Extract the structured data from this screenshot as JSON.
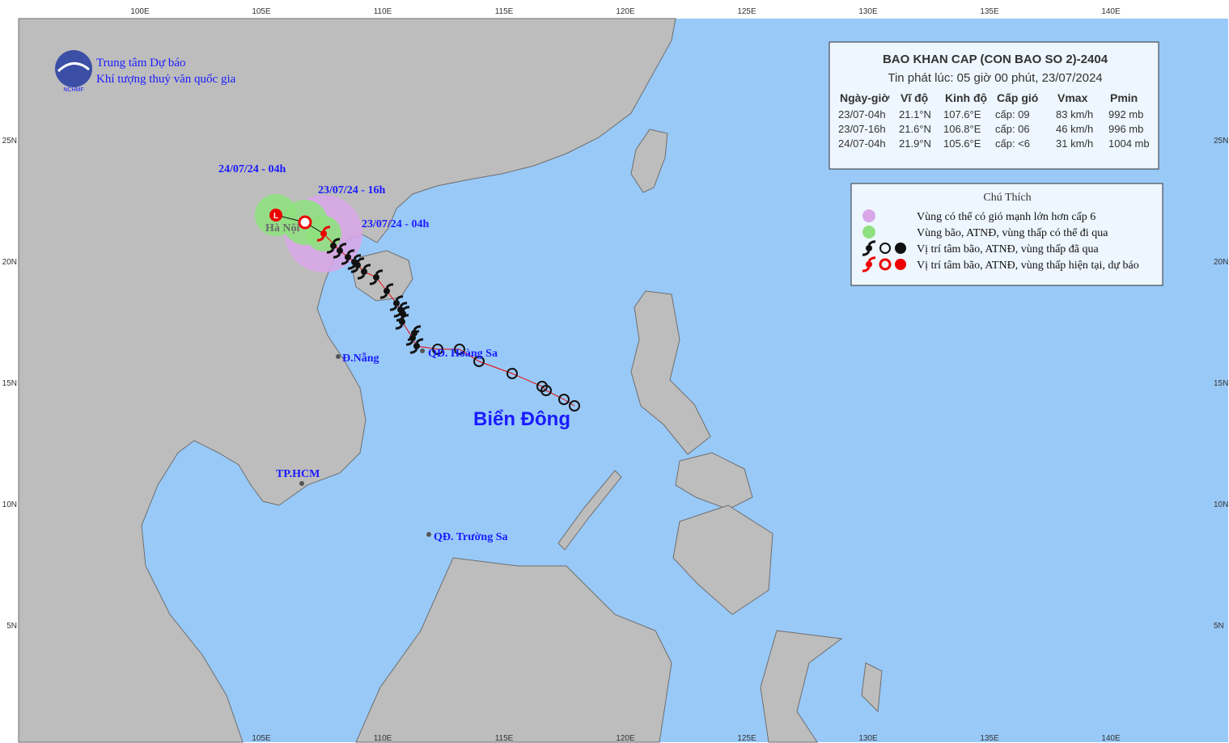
{
  "header": {
    "org_line1": "Trung tâm Dự báo",
    "org_line2": "Khí tượng thuỷ văn quốc gia",
    "logo": "NCHMF"
  },
  "bulletin": {
    "title": "BAO KHAN CAP (CON BAO SO 2)-2404",
    "issued": "Tin phát lúc: 05 giờ 00 phút, 23/07/2024",
    "columns": [
      "Ngày-giờ",
      "Vĩ độ",
      "Kinh độ",
      "Cấp gió",
      "Vmax",
      "Pmin"
    ],
    "rows": [
      [
        "23/07-04h",
        "21.1°N",
        "107.6°E",
        "cấp: 09",
        "83 km/h",
        "992 mb"
      ],
      [
        "23/07-16h",
        "21.6°N",
        "106.8°E",
        "cấp: 06",
        "46 km/h",
        "996 mb"
      ],
      [
        "24/07-04h",
        "21.9°N",
        "105.6°E",
        "cấp: <6",
        "31 km/h",
        "1004 mb"
      ]
    ]
  },
  "legend": {
    "title": "Chú Thích",
    "items": [
      "Vùng có thể có gió mạnh lớn hơn cấp 6",
      "Vùng bão, ATNĐ, vùng thấp có thể đi qua",
      "Vị trí tâm bão, ATNĐ, vùng thấp đã qua",
      "Vị trí tâm bão, ATNĐ, vùng thấp hiện tại, dự báo"
    ]
  },
  "map": {
    "lon_labels_top": [
      "100E",
      "105E",
      "110E",
      "115E",
      "120E",
      "125E",
      "130E",
      "135E",
      "140E"
    ],
    "lon_labels_bottom": [
      "105E",
      "110E",
      "115E",
      "120E",
      "125E",
      "130E",
      "135E",
      "140E"
    ],
    "lat_labels": [
      "25N",
      "20N",
      "15N",
      "10N",
      "5N"
    ],
    "track_labels": [
      "24/07/24 - 04h",
      "23/07/24 - 16h",
      "23/07/24 - 04h"
    ],
    "places": [
      "Hà Nội",
      "Đ.Nẵng",
      "QĐ. Hoàng Sa",
      "TP.HCM",
      "QĐ. Trường Sa"
    ],
    "sea": "Biển Đông"
  }
}
